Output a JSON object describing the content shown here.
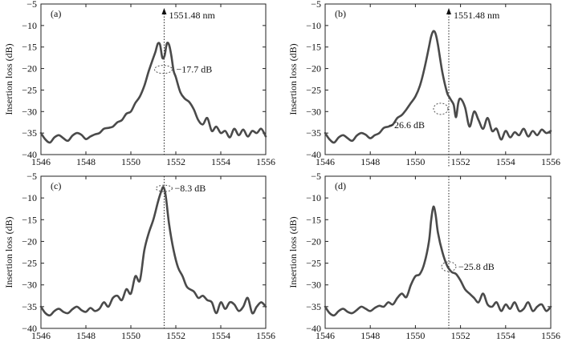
{
  "chart_data": [
    {
      "type": "line",
      "panel_label": "(a)",
      "ylabel": "Insertion loss (dB)",
      "xlim": [
        1546,
        1556
      ],
      "ylim": [
        -40,
        -5
      ],
      "xticks": [
        1546,
        1548,
        1550,
        1552,
        1554,
        1556
      ],
      "yticks": [
        -40,
        -35,
        -30,
        -25,
        -20,
        -15,
        -10,
        -5
      ],
      "grid": false,
      "marker_line": {
        "x": 1551.48,
        "label": "1551.48 nm",
        "arrow": true
      },
      "annotation": {
        "text": "−17.7 dB",
        "x": 1551.48,
        "y": -20.2
      },
      "series": [
        {
          "x": [
            1546.0,
            1546.2,
            1546.4,
            1546.6,
            1546.8,
            1547.0,
            1547.2,
            1547.4,
            1547.6,
            1547.8,
            1548.0,
            1548.2,
            1548.4,
            1548.6,
            1548.8,
            1549.0,
            1549.2,
            1549.4,
            1549.6,
            1549.8,
            1550.0,
            1550.2,
            1550.4,
            1550.6,
            1550.8,
            1551.0,
            1551.1,
            1551.2,
            1551.3,
            1551.4,
            1551.5,
            1551.6,
            1551.7,
            1551.8,
            1551.9,
            1552.0,
            1552.2,
            1552.4,
            1552.6,
            1552.8,
            1553.0,
            1553.2,
            1553.4,
            1553.6,
            1553.8,
            1554.0,
            1554.2,
            1554.4,
            1554.6,
            1554.8,
            1555.0,
            1555.2,
            1555.4,
            1555.6,
            1555.8,
            1556.0
          ],
          "y": [
            -35.0,
            -36.5,
            -37.2,
            -36.0,
            -35.5,
            -36.2,
            -36.8,
            -35.6,
            -35.0,
            -35.4,
            -36.4,
            -35.8,
            -35.3,
            -35.0,
            -34.0,
            -33.8,
            -33.5,
            -32.5,
            -32.0,
            -30.5,
            -30.0,
            -28.0,
            -26.5,
            -24.0,
            -20.5,
            -17.5,
            -16.0,
            -14.2,
            -14.5,
            -17.5,
            -17.0,
            -14.2,
            -14.5,
            -17.0,
            -20.5,
            -22.0,
            -25.5,
            -27.0,
            -27.8,
            -29.5,
            -32.0,
            -33.0,
            -31.5,
            -34.5,
            -33.5,
            -35.0,
            -34.5,
            -36.0,
            -34.0,
            -35.5,
            -34.2,
            -35.8,
            -34.5,
            -35.0,
            -34.0,
            -35.8
          ]
        }
      ]
    },
    {
      "type": "line",
      "panel_label": "(b)",
      "ylabel": "Insertion loss (dB)",
      "xlim": [
        1546,
        1556
      ],
      "ylim": [
        -40,
        -5
      ],
      "xticks": [
        1546,
        1548,
        1550,
        1552,
        1554,
        1556
      ],
      "yticks": [
        -40,
        -35,
        -30,
        -25,
        -20,
        -15,
        -10,
        -5
      ],
      "grid": false,
      "marker_line": {
        "x": 1551.48,
        "label": "1551.48 nm",
        "arrow": true
      },
      "annotation": {
        "text": "−26.6 dB",
        "x": 1551.48,
        "y": -28.8
      },
      "series": [
        {
          "x": [
            1546.0,
            1546.2,
            1546.4,
            1546.6,
            1546.8,
            1547.0,
            1547.2,
            1547.4,
            1547.6,
            1547.8,
            1548.0,
            1548.2,
            1548.4,
            1548.6,
            1548.8,
            1549.0,
            1549.2,
            1549.4,
            1549.6,
            1549.8,
            1550.0,
            1550.2,
            1550.4,
            1550.6,
            1550.7,
            1550.8,
            1550.9,
            1551.0,
            1551.2,
            1551.4,
            1551.5,
            1551.6,
            1551.7,
            1551.8,
            1551.9,
            1552.0,
            1552.2,
            1552.4,
            1552.6,
            1552.8,
            1553.0,
            1553.2,
            1553.4,
            1553.6,
            1553.8,
            1554.0,
            1554.2,
            1554.4,
            1554.6,
            1554.8,
            1555.0,
            1555.2,
            1555.4,
            1555.6,
            1555.8,
            1556.0
          ],
          "y": [
            -35.0,
            -36.5,
            -37.2,
            -36.0,
            -35.5,
            -36.2,
            -36.8,
            -35.6,
            -35.0,
            -35.4,
            -36.2,
            -35.5,
            -35.0,
            -33.8,
            -33.5,
            -33.0,
            -31.5,
            -30.8,
            -29.5,
            -28.0,
            -26.5,
            -24.0,
            -20.0,
            -15.0,
            -12.5,
            -11.3,
            -12.0,
            -14.5,
            -21.0,
            -25.5,
            -26.6,
            -27.5,
            -28.5,
            -31.3,
            -28.0,
            -27.0,
            -29.0,
            -33.5,
            -30.0,
            -32.0,
            -34.0,
            -31.5,
            -34.5,
            -34.0,
            -36.5,
            -34.5,
            -36.0,
            -34.8,
            -35.5,
            -34.0,
            -35.8,
            -34.5,
            -35.5,
            -34.2,
            -35.0,
            -34.5
          ]
        }
      ]
    },
    {
      "type": "line",
      "panel_label": "(c)",
      "ylabel": "Insertion loss (dB)",
      "xlim": [
        1546,
        1556
      ],
      "ylim": [
        -40,
        -5
      ],
      "xticks": [
        1546,
        1548,
        1550,
        1552,
        1554,
        1556
      ],
      "yticks": [
        -40,
        -35,
        -30,
        -25,
        -20,
        -15,
        -10,
        -5
      ],
      "grid": false,
      "marker_line": {
        "x": 1551.48,
        "label": "",
        "arrow": false
      },
      "annotation": {
        "text": "−8.3 dB",
        "x": 1551.48,
        "y": -7.8
      },
      "series": [
        {
          "x": [
            1546.0,
            1546.2,
            1546.4,
            1546.6,
            1546.8,
            1547.0,
            1547.2,
            1547.4,
            1547.6,
            1547.8,
            1548.0,
            1548.2,
            1548.4,
            1548.6,
            1548.8,
            1549.0,
            1549.2,
            1549.4,
            1549.6,
            1549.8,
            1550.0,
            1550.2,
            1550.4,
            1550.6,
            1550.8,
            1551.0,
            1551.2,
            1551.35,
            1551.45,
            1551.55,
            1551.7,
            1551.9,
            1552.1,
            1552.3,
            1552.5,
            1552.8,
            1553.0,
            1553.2,
            1553.4,
            1553.6,
            1553.8,
            1554.0,
            1554.2,
            1554.4,
            1554.6,
            1554.8,
            1555.0,
            1555.2,
            1555.4,
            1555.6,
            1555.8,
            1556.0
          ],
          "y": [
            -35.0,
            -36.5,
            -37.0,
            -36.0,
            -35.5,
            -36.2,
            -36.5,
            -35.6,
            -35.0,
            -35.8,
            -36.2,
            -35.3,
            -36.0,
            -35.5,
            -34.0,
            -35.0,
            -33.0,
            -32.5,
            -33.5,
            -31.0,
            -32.0,
            -28.0,
            -29.0,
            -22.0,
            -18.0,
            -15.0,
            -11.0,
            -8.5,
            -7.5,
            -9.5,
            -16.0,
            -22.0,
            -26.0,
            -28.0,
            -30.5,
            -31.5,
            -33.0,
            -32.5,
            -33.5,
            -34.0,
            -36.5,
            -34.0,
            -35.5,
            -34.0,
            -34.5,
            -36.0,
            -35.0,
            -33.0,
            -36.5,
            -35.0,
            -34.0,
            -35.0
          ]
        }
      ]
    },
    {
      "type": "line",
      "panel_label": "(d)",
      "ylabel": "Insertion loss (dB)",
      "xlim": [
        1546,
        1556
      ],
      "ylim": [
        -40,
        -5
      ],
      "xticks": [
        1546,
        1548,
        1550,
        1552,
        1554,
        1556
      ],
      "yticks": [
        -40,
        -35,
        -30,
        -25,
        -20,
        -15,
        -10,
        -5
      ],
      "grid": false,
      "marker_line": {
        "x": 1551.48,
        "label": "",
        "arrow": false
      },
      "annotation": {
        "text": "−25.8 dB",
        "x": 1551.48,
        "y": -25.8
      },
      "series": [
        {
          "x": [
            1546.0,
            1546.2,
            1546.4,
            1546.6,
            1546.8,
            1547.0,
            1547.2,
            1547.4,
            1547.6,
            1547.8,
            1548.0,
            1548.2,
            1548.4,
            1548.6,
            1548.8,
            1549.0,
            1549.2,
            1549.4,
            1549.6,
            1549.8,
            1550.0,
            1550.2,
            1550.4,
            1550.6,
            1550.7,
            1550.8,
            1550.9,
            1551.0,
            1551.2,
            1551.4,
            1551.6,
            1551.8,
            1552.0,
            1552.2,
            1552.4,
            1552.6,
            1552.8,
            1553.0,
            1553.2,
            1553.4,
            1553.6,
            1553.8,
            1554.0,
            1554.2,
            1554.4,
            1554.6,
            1554.8,
            1555.0,
            1555.2,
            1555.4,
            1555.6,
            1555.8,
            1556.0
          ],
          "y": [
            -35.0,
            -36.5,
            -37.0,
            -36.0,
            -35.5,
            -36.2,
            -36.5,
            -35.8,
            -35.0,
            -35.5,
            -36.0,
            -35.3,
            -34.8,
            -35.0,
            -34.0,
            -34.5,
            -33.0,
            -32.0,
            -32.8,
            -30.0,
            -28.0,
            -27.5,
            -25.0,
            -20.0,
            -15.0,
            -12.0,
            -14.0,
            -18.0,
            -22.5,
            -25.5,
            -27.0,
            -27.5,
            -29.0,
            -31.0,
            -32.0,
            -33.0,
            -34.0,
            -32.0,
            -34.5,
            -35.0,
            -34.0,
            -36.0,
            -34.5,
            -35.5,
            -34.0,
            -36.0,
            -35.5,
            -34.0,
            -36.0,
            -35.0,
            -34.5,
            -36.0,
            -35.0
          ]
        }
      ]
    }
  ]
}
